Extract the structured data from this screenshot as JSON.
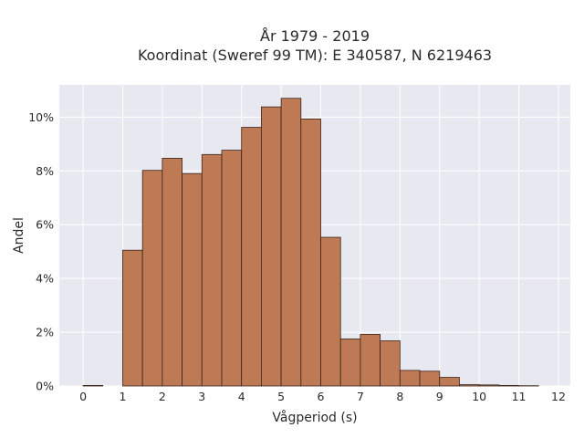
{
  "chart_data": {
    "type": "bar",
    "title_line1": "År 1979 - 2019",
    "title_line2": "Koordinat (Sweref 99 TM): E 340587, N 6219463",
    "xlabel": "Vågperiod (s)",
    "ylabel": "Andel",
    "xlim": [
      -0.6,
      12.3
    ],
    "ylim": [
      0,
      11.2
    ],
    "x_ticks": [
      0,
      1,
      2,
      3,
      4,
      5,
      6,
      7,
      8,
      9,
      10,
      11,
      12
    ],
    "y_ticks": [
      0,
      2,
      4,
      6,
      8,
      10
    ],
    "y_tick_suffix": "%",
    "bin_width": 0.5,
    "bins": [
      {
        "start": 0.0,
        "value": 0.02
      },
      {
        "start": 1.0,
        "value": 5.05
      },
      {
        "start": 1.5,
        "value": 8.02
      },
      {
        "start": 2.0,
        "value": 8.47
      },
      {
        "start": 2.5,
        "value": 7.9
      },
      {
        "start": 3.0,
        "value": 8.61
      },
      {
        "start": 3.5,
        "value": 8.77
      },
      {
        "start": 4.0,
        "value": 9.62
      },
      {
        "start": 4.5,
        "value": 10.38
      },
      {
        "start": 5.0,
        "value": 10.7
      },
      {
        "start": 5.5,
        "value": 9.93
      },
      {
        "start": 6.0,
        "value": 5.53
      },
      {
        "start": 6.5,
        "value": 1.75
      },
      {
        "start": 7.0,
        "value": 1.92
      },
      {
        "start": 7.5,
        "value": 1.68
      },
      {
        "start": 8.0,
        "value": 0.58
      },
      {
        "start": 8.5,
        "value": 0.55
      },
      {
        "start": 9.0,
        "value": 0.32
      },
      {
        "start": 9.5,
        "value": 0.05
      },
      {
        "start": 10.0,
        "value": 0.04
      },
      {
        "start": 10.5,
        "value": 0.02
      },
      {
        "start": 11.0,
        "value": 0.01
      }
    ],
    "bar_color": "#bd7a54",
    "bar_edge_color": "#3a2418",
    "plot_background": "#e8e8f0",
    "grid": true,
    "legend": false
  }
}
